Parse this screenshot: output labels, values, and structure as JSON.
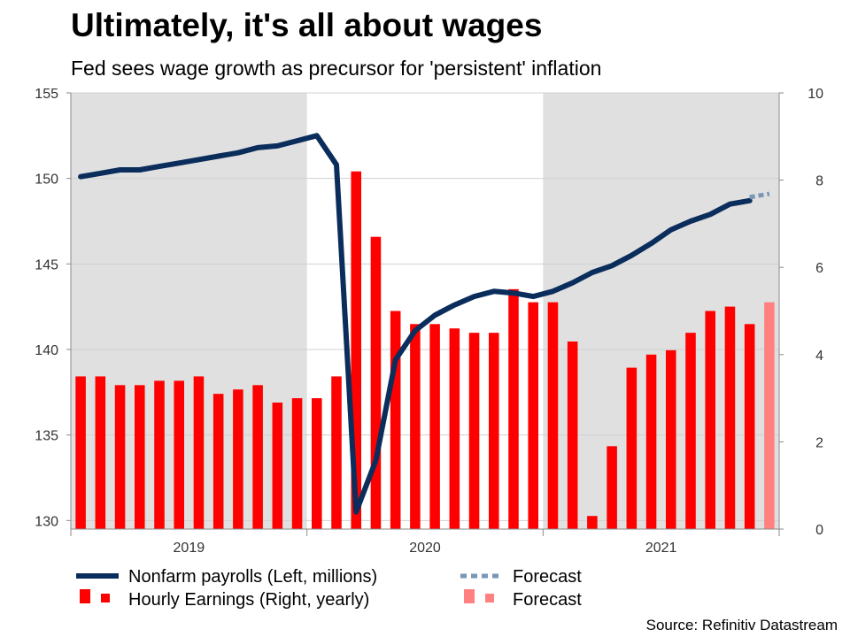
{
  "header": {
    "title": "Ultimately, it's all about wages",
    "subtitle": "Fed sees wage growth as precursor for 'persistent' inflation"
  },
  "source": "Source: Refinitiv Datastream",
  "chart_data": {
    "type": "bar+line",
    "x": [
      "2019-01",
      "2019-02",
      "2019-03",
      "2019-04",
      "2019-05",
      "2019-06",
      "2019-07",
      "2019-08",
      "2019-09",
      "2019-10",
      "2019-11",
      "2019-12",
      "2020-01",
      "2020-02",
      "2020-03",
      "2020-04",
      "2020-05",
      "2020-06",
      "2020-07",
      "2020-08",
      "2020-09",
      "2020-10",
      "2020-11",
      "2020-12",
      "2021-01",
      "2021-02",
      "2021-03",
      "2021-04",
      "2021-05",
      "2021-06",
      "2021-07",
      "2021-08",
      "2021-09",
      "2021-10",
      "2021-11",
      "2021-12"
    ],
    "x_tick_labels": [
      "2019",
      "2020",
      "2021"
    ],
    "shaded_years": [
      "2019",
      "2021"
    ],
    "left_axis": {
      "ylim": [
        129.5,
        155
      ],
      "ticks": [
        130,
        135,
        140,
        145,
        150,
        155
      ]
    },
    "right_axis": {
      "ylim": [
        0,
        10
      ],
      "ticks": [
        0,
        2,
        4,
        6,
        8,
        10
      ]
    },
    "series": [
      {
        "name": "Nonfarm payrolls (Left, millions)",
        "type": "line",
        "axis": "left",
        "color": "#0a2d5c",
        "values": [
          150.1,
          150.3,
          150.5,
          150.5,
          150.7,
          150.9,
          151.1,
          151.3,
          151.5,
          151.8,
          151.9,
          152.2,
          152.5,
          150.8,
          130.5,
          133.5,
          139.4,
          141.1,
          142.0,
          142.6,
          143.1,
          143.4,
          143.3,
          143.1,
          143.4,
          143.9,
          144.5,
          144.9,
          145.5,
          146.2,
          147.0,
          147.5,
          147.9,
          148.5,
          148.7,
          null
        ]
      },
      {
        "name": "Forecast",
        "type": "line",
        "axis": "left",
        "color": "#7a96b5",
        "dashed": true,
        "points": [
          [
            "2021-11",
            148.9
          ],
          [
            "2021-12",
            149.1
          ]
        ]
      },
      {
        "name": "Hourly Earnings (Right, yearly)",
        "type": "bar",
        "axis": "right",
        "color": "#ff0000",
        "values": [
          3.5,
          3.5,
          3.3,
          3.3,
          3.4,
          3.4,
          3.5,
          3.1,
          3.2,
          3.3,
          2.9,
          3.0,
          3.0,
          3.5,
          8.2,
          6.7,
          5.0,
          4.7,
          4.7,
          4.6,
          4.5,
          4.5,
          5.5,
          5.2,
          5.2,
          4.3,
          0.3,
          1.9,
          3.7,
          4.0,
          4.1,
          4.5,
          5.0,
          5.1,
          4.7,
          null
        ]
      },
      {
        "name": "Forecast",
        "type": "bar",
        "axis": "right",
        "color": "#ff8080",
        "points": [
          [
            "2021-12",
            5.2
          ]
        ]
      }
    ],
    "legend_placement": "bottom"
  }
}
